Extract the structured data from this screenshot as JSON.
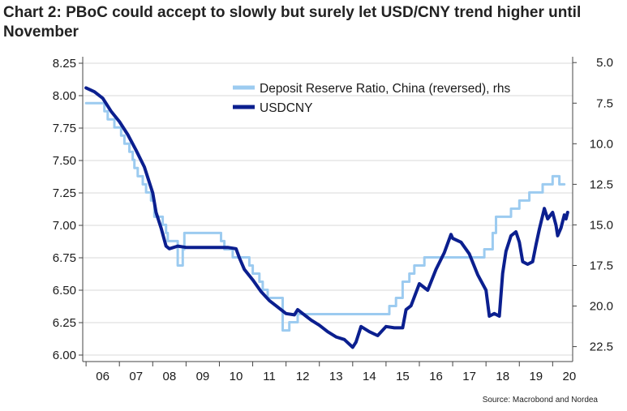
{
  "title": "Chart 2: PBoC could accept to slowly but surely let USD/CNY trend higher until November",
  "source": "Source: Macrobond and Nordea",
  "colors": {
    "usdcny": "#0b1f8f",
    "rrr": "#9ccbf0",
    "grid": "#d9d9d9",
    "axis": "#444444"
  },
  "chart_data": {
    "type": "line",
    "title": "Chart 2: PBoC could accept to slowly but surely let USD/CNY trend higher until November",
    "x_tick_labels": [
      "06",
      "07",
      "08",
      "09",
      "10",
      "11",
      "12",
      "13",
      "14",
      "15",
      "16",
      "17",
      "18",
      "19",
      "20"
    ],
    "xlim": [
      2005.9,
      2020.6
    ],
    "left_axis": {
      "ylim": [
        5.95,
        8.3
      ],
      "ticks": [
        "8.25",
        "8.00",
        "7.75",
        "7.50",
        "7.25",
        "7.00",
        "6.75",
        "6.50",
        "6.25",
        "6.00"
      ]
    },
    "right_axis": {
      "ylim": [
        23.42,
        4.64
      ],
      "reversed": true,
      "ticks": [
        "5.0",
        "7.5",
        "10.0",
        "12.5",
        "15.0",
        "17.5",
        "20.0",
        "22.5"
      ]
    },
    "legend": [
      "Deposit Reserve Ratio, China (reversed), rhs",
      "USDCNY"
    ],
    "series": [
      {
        "name": "Deposit Reserve Ratio, China (reversed), rhs",
        "axis": "right",
        "step": true,
        "x": [
          2006.0,
          2006.55,
          2006.65,
          2006.85,
          2007.05,
          2007.15,
          2007.3,
          2007.4,
          2007.45,
          2007.55,
          2007.7,
          2007.8,
          2007.95,
          2008.05,
          2008.3,
          2008.4,
          2008.45,
          2008.75,
          2008.9,
          2008.95,
          2010.05,
          2010.15,
          2010.4,
          2010.9,
          2011.0,
          2011.2,
          2011.3,
          2011.45,
          2011.9,
          2012.1,
          2012.35,
          2015.1,
          2015.3,
          2015.5,
          2015.7,
          2015.85,
          2016.15,
          2017.95,
          2018.2,
          2018.3,
          2018.75,
          2019.0,
          2019.3,
          2019.7,
          2020.0,
          2020.2,
          2020.35
        ],
        "values": [
          7.5,
          8.0,
          8.5,
          9.0,
          9.5,
          10.0,
          10.5,
          11.0,
          11.5,
          12.0,
          12.5,
          13.0,
          13.5,
          14.5,
          15.0,
          15.5,
          16.0,
          17.5,
          16.5,
          15.5,
          16.0,
          16.5,
          17.0,
          17.5,
          18.0,
          18.5,
          19.0,
          19.5,
          21.5,
          21.0,
          20.5,
          20.0,
          19.5,
          18.5,
          18.0,
          17.5,
          17.0,
          16.5,
          15.5,
          14.5,
          14.0,
          13.5,
          13.0,
          12.5,
          12.0,
          12.5,
          12.5
        ],
        "color": "#9ccbf0"
      },
      {
        "name": "USDCNY",
        "axis": "left",
        "x": [
          2006.0,
          2006.25,
          2006.5,
          2006.75,
          2007.0,
          2007.25,
          2007.5,
          2007.75,
          2008.0,
          2008.1,
          2008.25,
          2008.4,
          2008.5,
          2008.75,
          2009.0,
          2009.25,
          2009.5,
          2009.75,
          2010.0,
          2010.25,
          2010.5,
          2010.6,
          2010.75,
          2011.0,
          2011.25,
          2011.5,
          2011.75,
          2012.0,
          2012.25,
          2012.35,
          2012.5,
          2012.6,
          2012.75,
          2013.0,
          2013.25,
          2013.5,
          2013.75,
          2014.0,
          2014.1,
          2014.25,
          2014.5,
          2014.75,
          2015.0,
          2015.25,
          2015.5,
          2015.6,
          2015.75,
          2016.0,
          2016.25,
          2016.5,
          2016.75,
          2016.95,
          2017.0,
          2017.25,
          2017.5,
          2017.75,
          2018.0,
          2018.1,
          2018.25,
          2018.4,
          2018.5,
          2018.6,
          2018.75,
          2018.9,
          2019.0,
          2019.1,
          2019.25,
          2019.4,
          2019.5,
          2019.6,
          2019.75,
          2019.85,
          2020.0,
          2020.1,
          2020.15,
          2020.25,
          2020.35,
          2020.4,
          2020.45
        ],
        "values": [
          8.06,
          8.03,
          7.98,
          7.88,
          7.8,
          7.7,
          7.58,
          7.45,
          7.25,
          7.1,
          6.98,
          6.84,
          6.82,
          6.84,
          6.83,
          6.83,
          6.83,
          6.83,
          6.83,
          6.83,
          6.82,
          6.75,
          6.66,
          6.58,
          6.49,
          6.42,
          6.37,
          6.32,
          6.31,
          6.35,
          6.32,
          6.3,
          6.27,
          6.23,
          6.18,
          6.14,
          6.12,
          6.06,
          6.1,
          6.22,
          6.18,
          6.15,
          6.22,
          6.21,
          6.21,
          6.35,
          6.38,
          6.55,
          6.5,
          6.66,
          6.79,
          6.93,
          6.9,
          6.87,
          6.78,
          6.62,
          6.5,
          6.3,
          6.32,
          6.3,
          6.63,
          6.8,
          6.92,
          6.95,
          6.87,
          6.72,
          6.7,
          6.72,
          6.85,
          6.97,
          7.13,
          7.05,
          7.1,
          7.0,
          6.92,
          6.98,
          7.08,
          7.05,
          7.1
        ],
        "color": "#0b1f8f"
      }
    ]
  }
}
